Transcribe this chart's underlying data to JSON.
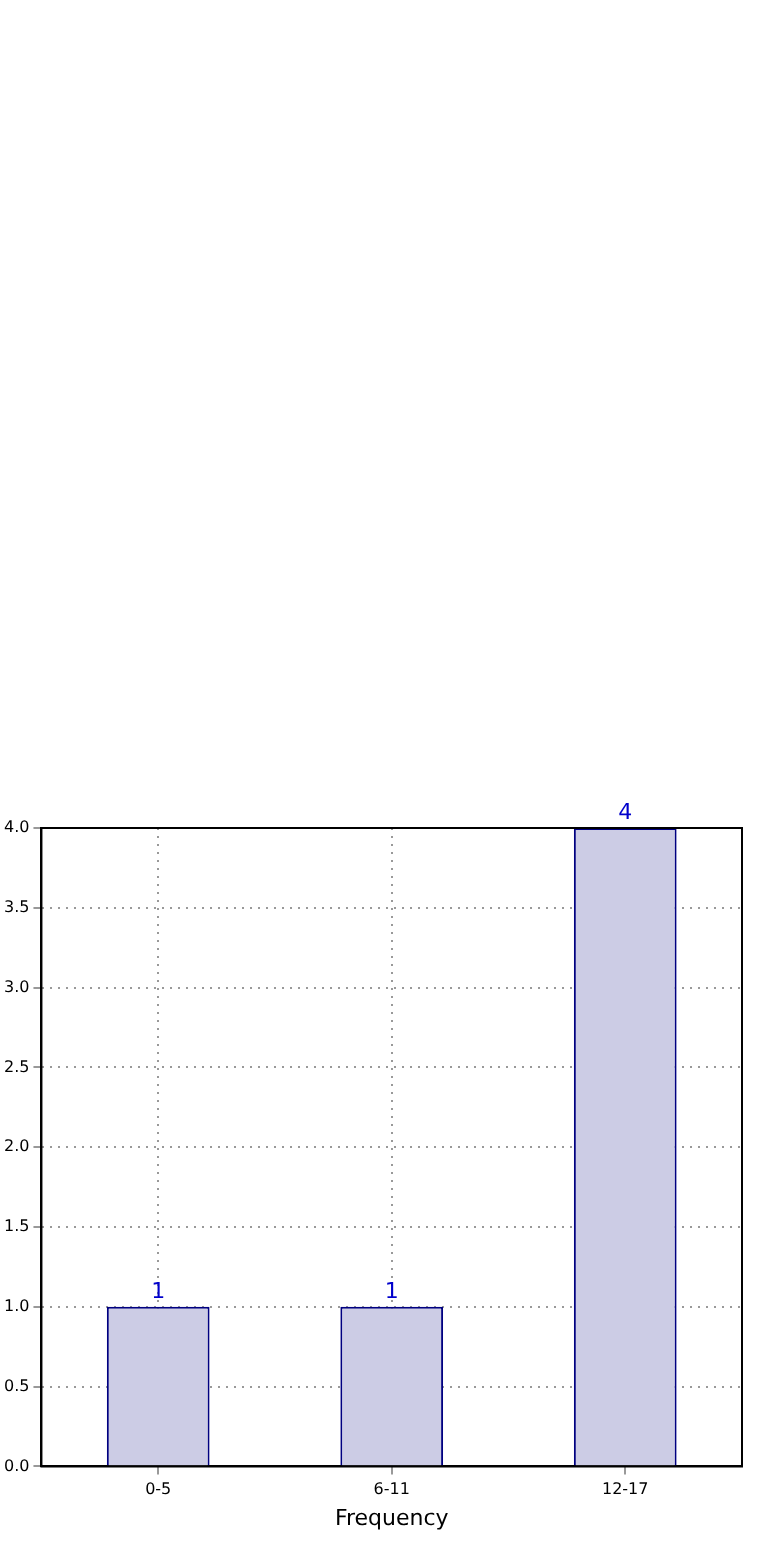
{
  "chart_data": {
    "type": "bar",
    "xlabel": "Frequency",
    "categories": [
      "0-5",
      "6-11",
      "12-17"
    ],
    "values": [
      1,
      1,
      4
    ],
    "color": "#ccccE5",
    "ylim": [
      0,
      4
    ],
    "yticks": [
      {
        "value": 0,
        "label": "0.0"
      },
      {
        "value": 0.5,
        "label": "0.5"
      },
      {
        "value": 1,
        "label": "1.0"
      },
      {
        "value": 1.5,
        "label": "1.5"
      },
      {
        "value": 2,
        "label": "2.0"
      },
      {
        "value": 2.5,
        "label": "2.5"
      },
      {
        "value": 3,
        "label": "3.0"
      },
      {
        "value": 3.5,
        "label": "3.5"
      },
      {
        "value": 4,
        "label": "4.0"
      }
    ],
    "grid": true,
    "data_labels": true,
    "legend": false
  }
}
